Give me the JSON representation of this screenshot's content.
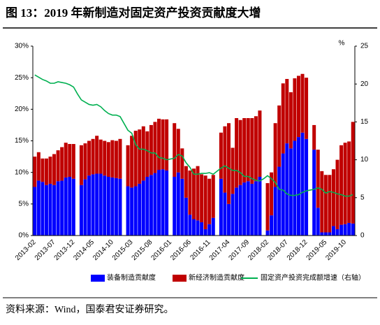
{
  "chart_data": {
    "type": "bar",
    "stacked": true,
    "title": "图 13：2019 年新制造对固定资产投资贡献度大增",
    "source": "资料来源：Wind，国泰君安证券研究。",
    "y2_unit": "%",
    "categories": [
      "2013-02",
      null,
      null,
      null,
      null,
      "2013-07",
      null,
      null,
      null,
      null,
      "2013-12",
      null,
      null,
      null,
      null,
      "2014-05",
      null,
      null,
      null,
      null,
      "2014-10",
      null,
      null,
      null,
      null,
      "2015-03",
      null,
      null,
      null,
      null,
      "2015-08",
      null,
      null,
      null,
      null,
      "2016-01",
      null,
      null,
      null,
      null,
      "2016-06",
      null,
      null,
      null,
      null,
      "2016-11",
      null,
      null,
      null,
      null,
      "2017-04",
      null,
      null,
      null,
      null,
      "2017-09",
      null,
      null,
      null,
      null,
      "2018-02",
      null,
      null,
      null,
      null,
      "2018-07",
      null,
      null,
      null,
      null,
      "2018-12",
      null,
      null,
      null,
      null,
      "2019-05",
      null,
      null,
      null,
      null,
      "2019-10",
      null,
      null
    ],
    "ylim": [
      0,
      30
    ],
    "yticks": [
      {
        "value": 0,
        "label": "0%"
      },
      {
        "value": 5,
        "label": "5%"
      },
      {
        "value": 10,
        "label": "10%"
      },
      {
        "value": 15,
        "label": "15%"
      },
      {
        "value": 20,
        "label": "20%"
      },
      {
        "value": 25,
        "label": "25%"
      },
      {
        "value": 30,
        "label": "30%"
      }
    ],
    "y2lim": [
      0,
      25
    ],
    "y2ticks": [
      0,
      5,
      10,
      15,
      20,
      25
    ],
    "legend": "bottom",
    "series": [
      {
        "name": "装备制造贡献度",
        "color": "#0000ff",
        "values": [
          7.7,
          8.7,
          8.5,
          8.0,
          8.2,
          8.0,
          8.6,
          8.7,
          9.2,
          9.3,
          9.0,
          null,
          8.0,
          8.9,
          9.5,
          9.7,
          9.8,
          9.8,
          9.5,
          9.3,
          9.2,
          9.1,
          9.0,
          null,
          7.8,
          7.6,
          7.8,
          8.2,
          8.7,
          9.3,
          9.6,
          9.9,
          10.4,
          10.5,
          10.3,
          null,
          9.3,
          10.0,
          9.0,
          6.0,
          3.3,
          2.6,
          2.4,
          2.1,
          1.0,
          1.8,
          2.8,
          null,
          9.0,
          6.8,
          5.0,
          6.6,
          7.6,
          8.0,
          8.4,
          8.6,
          8.2,
          8.6,
          9.3,
          null,
          0.8,
          3.2,
          7.7,
          10.9,
          13.0,
          14.6,
          13.8,
          15.0,
          15.6,
          16.3,
          15.3,
          null,
          13.6,
          4.4,
          0.5,
          0.5,
          0.5,
          1.5,
          1.0,
          1.7,
          1.8,
          2.0,
          1.9
        ]
      },
      {
        "name": "新经济制造贡献度",
        "color": "#c00000",
        "values": [
          4.8,
          4.5,
          3.7,
          4.2,
          4.3,
          4.9,
          4.9,
          5.3,
          5.5,
          5.2,
          5.5,
          null,
          6.3,
          5.7,
          5.5,
          5.6,
          6.0,
          5.4,
          5.5,
          5.5,
          5.9,
          5.9,
          6.3,
          null,
          6.5,
          8.2,
          8.8,
          8.6,
          8.6,
          7.2,
          7.9,
          8.1,
          8.1,
          7.9,
          8.1,
          null,
          8.5,
          6.9,
          4.8,
          5.0,
          7.0,
          8.0,
          8.6,
          7.6,
          8.5,
          7.2,
          6.8,
          null,
          7.3,
          10.5,
          12.8,
          7.3,
          11.0,
          10.3,
          10.2,
          10.0,
          10.4,
          10.3,
          10.5,
          null,
          7.5,
          6.8,
          10.1,
          9.7,
          11.1,
          10.2,
          8.9,
          9.9,
          9.7,
          9.3,
          9.7,
          null,
          3.9,
          9.2,
          9.7,
          9.1,
          9.1,
          9.0,
          11.0,
          12.6,
          12.9,
          12.9,
          16.1
        ]
      },
      {
        "name": "固定资产投资完成额增速（右轴）",
        "type": "line",
        "axis": "y2",
        "color": "#00b050",
        "values": [
          21.2,
          20.9,
          20.6,
          20.4,
          20.1,
          20.1,
          20.3,
          20.2,
          20.1,
          19.9,
          19.6,
          18.7,
          17.9,
          17.6,
          17.3,
          17.2,
          17.3,
          17.0,
          16.5,
          16.1,
          15.9,
          15.9,
          15.7,
          14.8,
          13.9,
          13.5,
          12.0,
          11.4,
          11.4,
          11.2,
          10.9,
          10.9,
          10.3,
          10.2,
          10.0,
          10.1,
          10.2,
          10.7,
          10.5,
          9.6,
          9.0,
          8.1,
          8.1,
          8.2,
          8.2,
          8.3,
          8.1,
          8.5,
          8.9,
          9.2,
          8.9,
          8.6,
          8.6,
          8.3,
          7.8,
          7.8,
          7.5,
          7.3,
          7.2,
          7.5,
          7.9,
          7.5,
          7.0,
          6.1,
          6.0,
          5.5,
          5.3,
          5.3,
          5.4,
          5.7,
          5.9,
          6.0,
          6.1,
          6.3,
          6.1,
          5.6,
          5.8,
          5.7,
          5.5,
          5.4,
          5.2,
          5.2,
          5.4
        ]
      }
    ]
  }
}
